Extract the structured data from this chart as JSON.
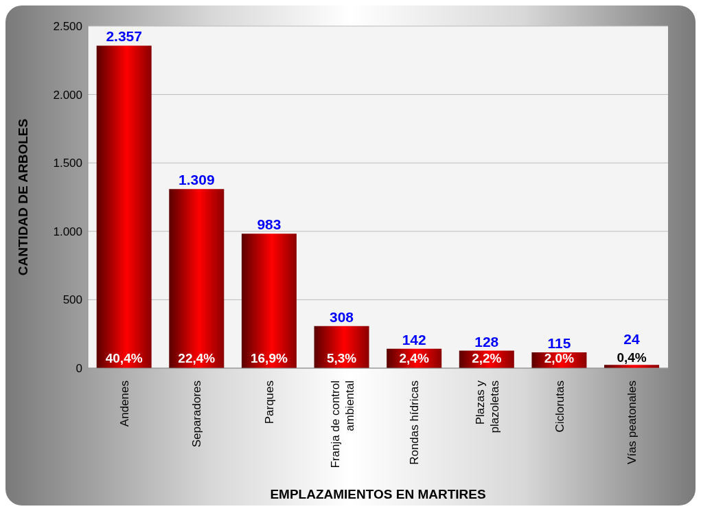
{
  "chart_data": {
    "type": "bar",
    "xlabel": "EMPLAZAMIENTOS EN MARTIRES",
    "ylabel": "CANTIDAD DE ARBOLES",
    "categories": [
      "Andenes",
      "Separadores",
      "Parques",
      "Franja de control ambiental",
      "Rondas hídricas",
      "Plazas y plazoletas",
      "Ciclorutas",
      "Vías peatonales"
    ],
    "values": [
      2357,
      1309,
      983,
      308,
      142,
      128,
      115,
      24
    ],
    "value_labels": [
      "2.357",
      "1.309",
      "983",
      "308",
      "142",
      "128",
      "115",
      "24"
    ],
    "color": "#ff0000",
    "ylim": [
      0,
      2500
    ],
    "yticks": [
      0,
      {
        "value": 500,
        "label": "500"
      },
      {
        "value": 1000,
        "label": "1.000"
      },
      {
        "value": 1500,
        "label": "1.500"
      },
      {
        "value": 2000,
        "label": "2.000"
      },
      {
        "value": 2500,
        "label": "2.500"
      }
    ],
    "grid": "y",
    "annotations": [
      {
        "text": "40,4%",
        "x": "Andenes",
        "y": 0
      },
      {
        "text": "22,4%",
        "x": "Separadores",
        "y": 0
      },
      {
        "text": "16,9%",
        "x": "Parques",
        "y": 0
      },
      {
        "text": "5,3%",
        "x": "Franja de control ambiental",
        "y": 0
      },
      {
        "text": "2,4%",
        "x": "Rondas hídricas",
        "y": 0
      },
      {
        "text": "2,2%",
        "x": "Plazas y plazoletas",
        "y": 0
      },
      {
        "text": "2,0%",
        "x": "Ciclorutas",
        "y": 0
      },
      {
        "text": "0,4%",
        "x": "Vías peatonales",
        "y": 24
      }
    ]
  }
}
